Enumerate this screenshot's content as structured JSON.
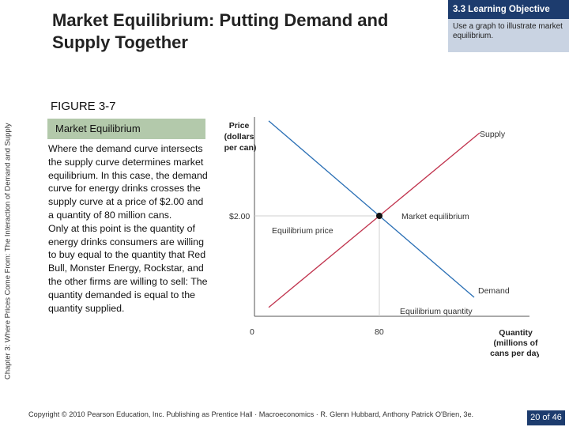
{
  "sidebar": {
    "chapter_label": "Chapter 3: Where Prices Come From: The Interaction of Demand and Supply"
  },
  "header": {
    "title": "Market Equilibrium: Putting Demand and Supply Together"
  },
  "learning_objective": {
    "label": "3.3 Learning Objective",
    "text": "Use a graph to illustrate market equilibrium."
  },
  "figure": {
    "number": "FIGURE 3-7",
    "caption": "Market Equilibrium",
    "description": "Where the demand curve intersects the supply curve determines market equilibrium. In this case, the demand curve for energy drinks crosses the supply curve at a price of $2.00 and a quantity of 80 million cans.",
    "description_2": "Only at this point is the quantity of energy drinks consumers are willing to buy equal to the quantity that Red Bull, Monster Energy, Rockstar, and the other firms are willing to sell: The quantity demanded is equal to the quantity supplied."
  },
  "chart_data": {
    "type": "line",
    "ylabel": "Price (dollars per can)",
    "xlabel": "Quantity (millions of cans per day)",
    "y_tick_label": "$2.00",
    "x_tick_labels": [
      "0",
      "80"
    ],
    "series": [
      {
        "name": "Supply",
        "color": "#c0334d"
      },
      {
        "name": "Demand",
        "color": "#2a6fb5"
      }
    ],
    "equilibrium": {
      "quantity": 80,
      "price": 2.0
    },
    "annotations": {
      "market_equilibrium": "Market equilibrium",
      "equilibrium_price": "Equilibrium price",
      "equilibrium_quantity": "Equilibrium quantity"
    }
  },
  "footer": {
    "copyright": "Copyright © 2010 Pearson Education, Inc. Publishing as Prentice Hall · Macroeconomics · R. Glenn Hubbard, Anthony Patrick O'Brien, 3e.",
    "page": "20 of 46"
  }
}
